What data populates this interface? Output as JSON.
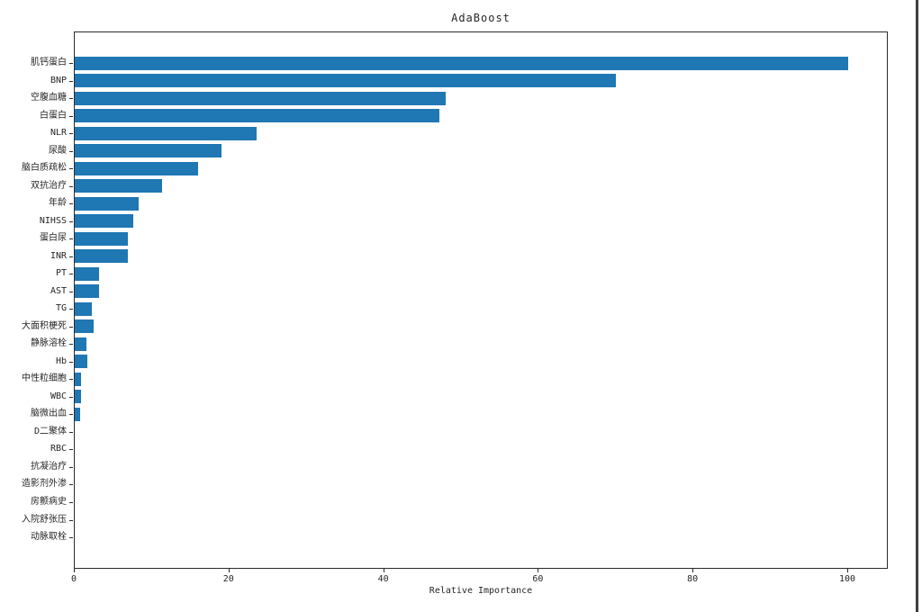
{
  "window": {
    "right_edge_color": "#3d3d3d",
    "background_color": "#ffffff"
  },
  "chart_data": {
    "type": "bar",
    "orientation": "horizontal",
    "title": "AdaBoost",
    "xlabel": "Relative Importance",
    "ylabel": "",
    "xlim": [
      0,
      105
    ],
    "xticks": [
      0,
      20,
      40,
      60,
      80,
      100
    ],
    "grid": false,
    "legend": null,
    "bar_color": "#1f77b4",
    "categories": [
      "肌钙蛋白",
      "BNP",
      "空腹血糖",
      "白蛋白",
      "NLR",
      "尿酸",
      "脑白质疏松",
      "双抗治疗",
      "年龄",
      "NIHSS",
      "蛋白尿",
      "INR",
      "PT",
      "AST",
      "TG",
      "大面积梗死",
      "静脉溶栓",
      "Hb",
      "中性粒细胞",
      "WBC",
      "脑微出血",
      "D二聚体",
      "RBC",
      "抗凝治疗",
      "造影剂外渗",
      "房颤病史",
      "入院舒张压",
      "动脉取栓"
    ],
    "values": [
      100,
      70,
      48,
      47.2,
      23.5,
      19,
      16,
      11.3,
      8.3,
      7.6,
      6.9,
      6.9,
      3.1,
      3.2,
      2.2,
      2.4,
      1.5,
      1.6,
      0.8,
      0.8,
      0.7,
      0,
      0,
      0,
      0,
      0,
      0,
      0
    ]
  }
}
